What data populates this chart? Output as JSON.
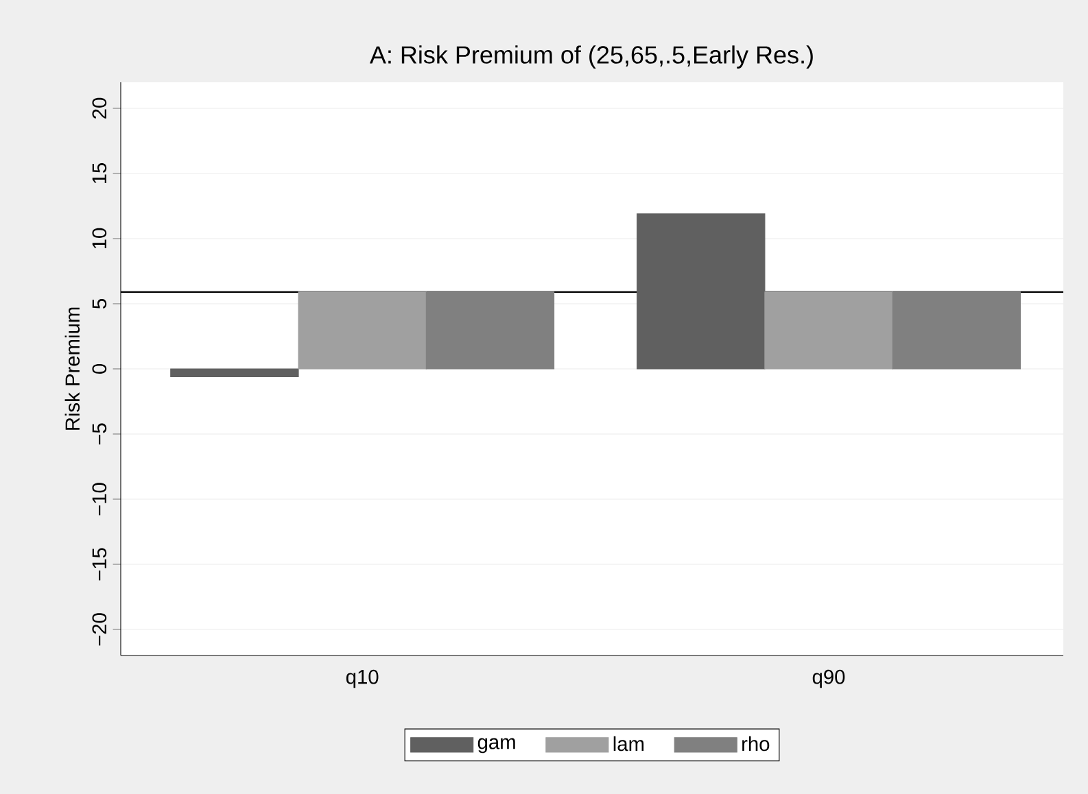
{
  "chart_data": {
    "type": "bar",
    "title": "A: Risk Premium of (25,65,.5,Early Res.)",
    "ylabel": "Risk Premium",
    "categories": [
      "q10",
      "q90"
    ],
    "series": [
      {
        "name": "gam",
        "color": "#606060",
        "values": [
          -0.6,
          11.9
        ]
      },
      {
        "name": "lam",
        "color": "#a0a0a0",
        "values": [
          5.9,
          5.9
        ]
      },
      {
        "name": "rho",
        "color": "#808080",
        "values": [
          5.9,
          5.9
        ]
      }
    ],
    "ylim": [
      -22,
      22
    ],
    "yticks": [
      {
        "value": -20,
        "label": "−20"
      },
      {
        "value": -15,
        "label": "−15"
      },
      {
        "value": -10,
        "label": "−10"
      },
      {
        "value": -5,
        "label": "−5"
      },
      0,
      5,
      10,
      15,
      20
    ],
    "ref_lines": [
      {
        "axis": "y",
        "value": 5.9,
        "color": "#000000"
      }
    ],
    "grid": "y",
    "legend": "bottom"
  }
}
